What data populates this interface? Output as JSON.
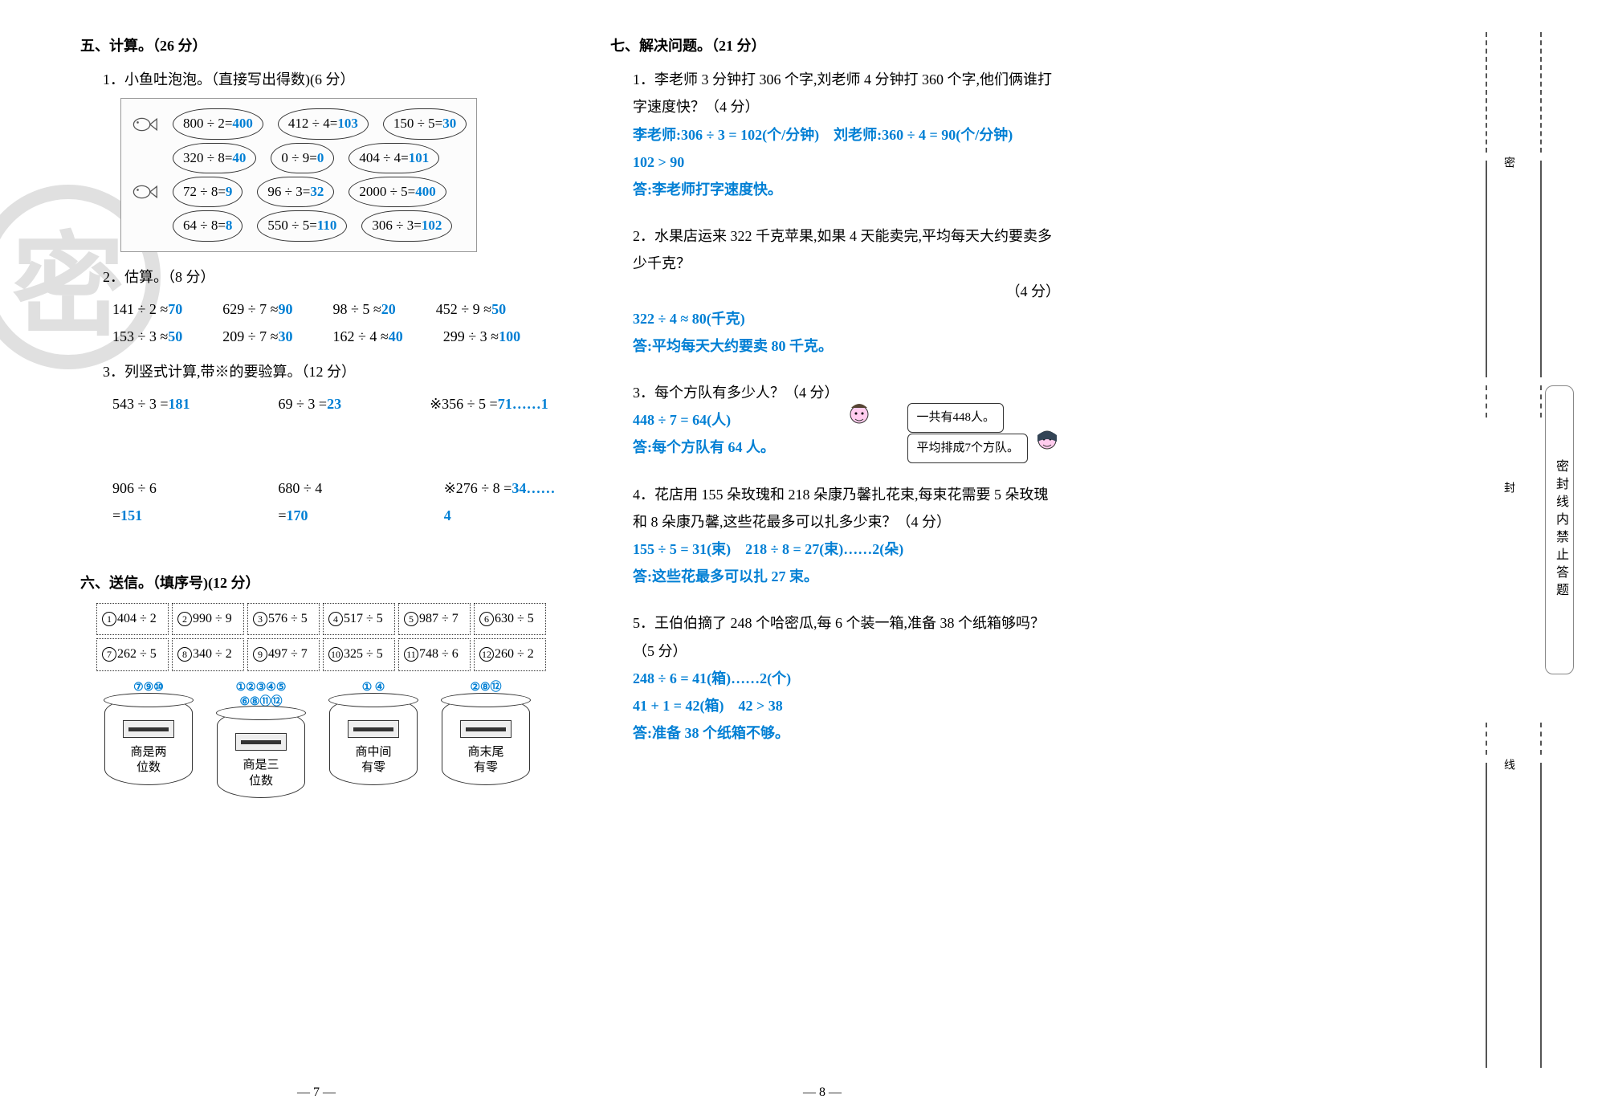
{
  "colors": {
    "answer": "#007fd4",
    "text": "#000000",
    "watermark": "#cccccc"
  },
  "section5": {
    "title": "五、计算。（26 分）",
    "q1": {
      "title": "1．小鱼吐泡泡。（直接写出得数)(6 分）",
      "rows": [
        [
          {
            "expr": "800 ÷ 2=",
            "ans": "400"
          },
          {
            "expr": "412 ÷ 4=",
            "ans": "103"
          },
          {
            "expr": "150 ÷ 5=",
            "ans": "30"
          }
        ],
        [
          {
            "expr": "320 ÷ 8=",
            "ans": "40"
          },
          {
            "expr": "0 ÷ 9=",
            "ans": "0"
          },
          {
            "expr": "404 ÷ 4=",
            "ans": "101"
          }
        ],
        [
          {
            "expr": "72 ÷ 8=",
            "ans": "9"
          },
          {
            "expr": "96 ÷ 3=",
            "ans": "32"
          },
          {
            "expr": "2000 ÷ 5=",
            "ans": "400"
          }
        ],
        [
          {
            "expr": "64 ÷ 8=",
            "ans": "8"
          },
          {
            "expr": "550 ÷ 5=",
            "ans": "110"
          },
          {
            "expr": "306 ÷ 3=",
            "ans": "102"
          }
        ]
      ]
    },
    "q2": {
      "title": "2．估算。（8 分）",
      "rows": [
        [
          {
            "expr": "141 ÷ 2 ≈",
            "ans": "70"
          },
          {
            "expr": "629 ÷ 7 ≈",
            "ans": "90"
          },
          {
            "expr": "98 ÷ 5 ≈",
            "ans": "20"
          },
          {
            "expr": "452 ÷ 9 ≈",
            "ans": "50"
          }
        ],
        [
          {
            "expr": "153 ÷ 3 ≈",
            "ans": "50"
          },
          {
            "expr": "209 ÷ 7 ≈",
            "ans": "30"
          },
          {
            "expr": "162 ÷ 4 ≈",
            "ans": "40"
          },
          {
            "expr": "299 ÷ 3 ≈",
            "ans": "100"
          }
        ]
      ]
    },
    "q3": {
      "title": "3．列竖式计算,带※的要验算。（12 分）",
      "rows": [
        [
          {
            "expr": "543 ÷ 3 =",
            "ans": "181"
          },
          {
            "expr": "69 ÷ 3 =",
            "ans": "23"
          },
          {
            "expr": "※356 ÷ 5 =",
            "ans": "71……1"
          }
        ],
        [
          {
            "expr": "906 ÷ 6 =",
            "ans": "151"
          },
          {
            "expr": "680 ÷ 4 =",
            "ans": "170"
          },
          {
            "expr": "※276 ÷ 8 =",
            "ans": "34……4"
          }
        ]
      ]
    }
  },
  "section6": {
    "title": "六、送信。（填序号)(12 分）",
    "cells": [
      {
        "n": "1",
        "t": "404 ÷ 2"
      },
      {
        "n": "2",
        "t": "990 ÷ 9"
      },
      {
        "n": "3",
        "t": "576 ÷ 5"
      },
      {
        "n": "4",
        "t": "517 ÷ 5"
      },
      {
        "n": "5",
        "t": "987 ÷ 7"
      },
      {
        "n": "6",
        "t": "630 ÷ 5"
      },
      {
        "n": "7",
        "t": "262 ÷ 5"
      },
      {
        "n": "8",
        "t": "340 ÷ 2"
      },
      {
        "n": "9",
        "t": "497 ÷ 7"
      },
      {
        "n": "10",
        "t": "325 ÷ 5"
      },
      {
        "n": "11",
        "t": "748 ÷ 6"
      },
      {
        "n": "12",
        "t": "260 ÷ 2"
      }
    ],
    "boxes": [
      {
        "top": "⑦⑨⑩",
        "label": "商是两\n位数"
      },
      {
        "top": "①②③④⑤\n⑥⑧⑪⑫",
        "label": "商是三\n位数"
      },
      {
        "top": "① ④",
        "label": "商中间\n有零"
      },
      {
        "top": "②⑧⑫",
        "label": "商末尾\n有零"
      }
    ]
  },
  "section7": {
    "title": "七、解决问题。（21 分）",
    "p1": {
      "q": "1．李老师 3 分钟打 306 个字,刘老师 4 分钟打 360 个字,他们俩谁打字速度快？（4 分）",
      "a1": "李老师:306 ÷ 3 = 102(个/分钟)　刘老师:360 ÷ 4 = 90(个/分钟)",
      "a2": "102 > 90",
      "ans": "答:李老师打字速度快。"
    },
    "p2": {
      "q": "2．水果店运来 322 千克苹果,如果 4 天能卖完,平均每天大约要卖多少千克？",
      "pts": "（4 分）",
      "a1": "322 ÷ 4 ≈ 80(千克)",
      "ans": "答:平均每天大约要卖 80 千克。"
    },
    "p3": {
      "q": "3．每个方队有多少人？（4 分）",
      "a1": "448 ÷ 7 = 64(人)",
      "ans": "答:每个方队有 64 人。",
      "bubble1": "一共有448人。",
      "bubble2": "平均排成7个方队。"
    },
    "p4": {
      "q": "4．花店用 155 朵玫瑰和 218 朵康乃馨扎花束,每束花需要 5 朵玫瑰和 8 朵康乃馨,这些花最多可以扎多少束？（4 分）",
      "a1": "155 ÷ 5 = 31(束)　218 ÷ 8 = 27(束)……2(朵)",
      "ans": "答:这些花最多可以扎 27 束。"
    },
    "p5": {
      "q": "5．王伯伯摘了 248 个哈密瓜,每 6 个装一箱,准备 38 个纸箱够吗？（5 分）",
      "a1": "248 ÷ 6 = 41(箱)……2(个)",
      "a2": "41 + 1 = 42(箱)　42 > 38",
      "ans": "答:准备 38 个纸箱不够。"
    }
  },
  "pagenum": {
    "left": "— 7 —",
    "right": "— 8 —"
  },
  "watermark": "密",
  "tab": "密封线内禁止答题",
  "seals": {
    "s1": "密",
    "s2": "封",
    "s3": "线"
  }
}
